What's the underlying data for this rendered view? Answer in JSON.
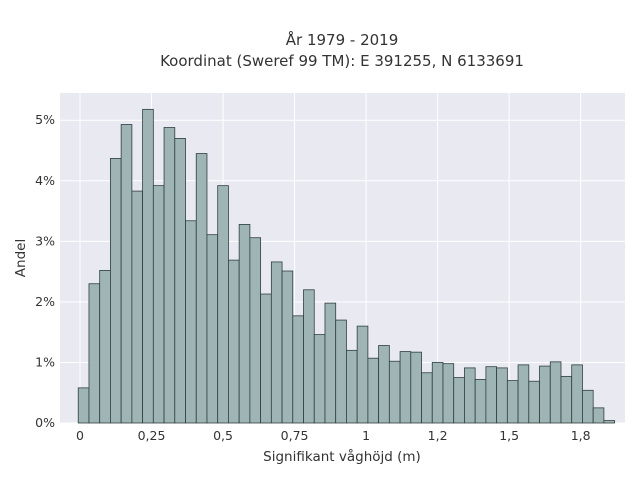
{
  "chart_data": {
    "type": "bar",
    "title_lines": [
      "År 1979 - 2019",
      "Koordinat (Sweref 99 TM): E 391255, N 6133691"
    ],
    "xlabel": "Signifikant våghöjd (m)",
    "ylabel": "Andel",
    "xlim": [
      -0.07,
      1.905
    ],
    "ylim": [
      0,
      5.45
    ],
    "bin_width": 0.0375,
    "x_ticks": [
      {
        "value": 0,
        "label": "0"
      },
      {
        "value": 0.25,
        "label": "0,25"
      },
      {
        "value": 0.5,
        "label": "0,5"
      },
      {
        "value": 0.75,
        "label": "0,75"
      },
      {
        "value": 1,
        "label": "1"
      },
      {
        "value": 1.25,
        "label": "1,2"
      },
      {
        "value": 1.5,
        "label": "1,5"
      },
      {
        "value": 1.75,
        "label": "1,8"
      }
    ],
    "y_ticks": [
      {
        "value": 0,
        "label": "0%"
      },
      {
        "value": 1,
        "label": "1%"
      },
      {
        "value": 2,
        "label": "2%"
      },
      {
        "value": 3,
        "label": "3%"
      },
      {
        "value": 4,
        "label": "4%"
      },
      {
        "value": 5,
        "label": "5%"
      }
    ],
    "grid": true,
    "bar_color": "#9fb5b5",
    "bar_edge_color": "#2f3f3f",
    "plot_background": "#e9e9f2",
    "bins": [
      0.0125,
      0.05,
      0.0875,
      0.125,
      0.1625,
      0.2,
      0.2375,
      0.275,
      0.3125,
      0.35,
      0.3875,
      0.425,
      0.4625,
      0.5,
      0.5375,
      0.575,
      0.6125,
      0.65,
      0.6875,
      0.725,
      0.7625,
      0.8,
      0.8375,
      0.875,
      0.9125,
      0.95,
      0.9875,
      1.025,
      1.0625,
      1.1,
      1.1375,
      1.175,
      1.2125,
      1.25,
      1.2875,
      1.325,
      1.3625,
      1.4,
      1.4375,
      1.475,
      1.5125,
      1.55,
      1.5875,
      1.625,
      1.6625,
      1.7,
      1.7375,
      1.775,
      1.8125,
      1.85
    ],
    "values": [
      0.58,
      2.3,
      2.52,
      4.37,
      4.93,
      3.83,
      5.18,
      3.92,
      4.88,
      4.7,
      3.34,
      4.45,
      3.11,
      3.92,
      2.69,
      3.28,
      3.06,
      2.13,
      2.66,
      2.51,
      1.77,
      2.2,
      1.46,
      1.98,
      1.7,
      1.2,
      1.6,
      1.07,
      1.28,
      1.02,
      1.18,
      1.17,
      0.83,
      1.0,
      0.98,
      0.75,
      0.91,
      0.72,
      0.93,
      0.91,
      0.7,
      0.96,
      0.69,
      0.94,
      1.01,
      0.77,
      0.96,
      0.54,
      0.25,
      0.04
    ]
  }
}
